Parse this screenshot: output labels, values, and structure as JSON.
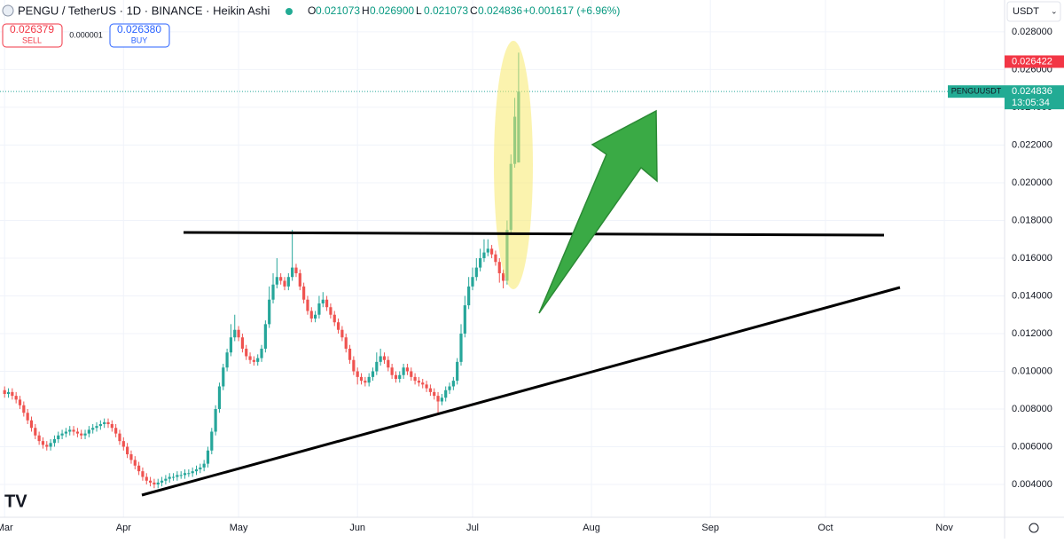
{
  "header": {
    "symbol": "PENGU / TetherUS · 1D · BINANCE · Heikin Ashi",
    "ohlc": [
      {
        "label": "O",
        "value": "0.021073"
      },
      {
        "label": "H",
        "value": "0.026900"
      },
      {
        "label": "L",
        "value": "0.021073"
      },
      {
        "label": "C",
        "value": "0.024836"
      }
    ],
    "change": "+0.001617 (+6.96%)"
  },
  "order_panel": {
    "sell_price": "0.026379",
    "sell_label": "SELL",
    "spread": "0.000001",
    "buy_price": "0.026380",
    "buy_label": "BUY"
  },
  "currency": "USDT",
  "chart_data": {
    "type": "candlestick",
    "up_color": "#26a69a",
    "down_color": "#ef5350",
    "x": [
      0,
      1,
      2,
      3,
      4,
      5,
      6,
      7,
      8,
      9,
      10,
      11,
      12,
      13,
      14,
      15,
      16,
      17,
      18,
      19,
      20,
      21,
      22,
      23,
      24,
      25,
      26,
      27,
      28,
      29,
      30,
      31,
      32,
      33,
      34,
      35,
      36,
      37,
      38,
      39,
      40,
      41,
      42,
      43,
      44,
      45,
      46,
      47,
      48,
      49,
      50,
      51,
      52,
      53,
      54,
      55,
      56,
      57,
      58,
      59,
      60,
      61,
      62,
      63,
      64,
      65,
      66,
      67,
      68,
      69,
      70,
      71,
      72,
      73,
      74,
      75,
      76,
      77,
      78,
      79,
      80,
      81,
      82,
      83,
      84,
      85,
      86,
      87,
      88,
      89,
      90,
      91,
      92,
      93,
      94,
      95,
      96,
      97,
      98,
      99,
      100,
      101,
      102,
      103,
      104,
      105,
      106,
      107,
      108,
      109,
      110,
      111,
      112,
      113,
      114,
      115,
      116,
      117,
      118,
      119,
      120,
      121,
      122,
      123,
      124,
      125,
      126,
      127,
      128,
      129,
      130,
      131,
      132,
      133,
      134
    ],
    "open": [
      0.009,
      0.0088,
      0.0089,
      0.0087,
      0.0085,
      0.0082,
      0.0078,
      0.0074,
      0.007,
      0.0066,
      0.0063,
      0.0061,
      0.006,
      0.0062,
      0.0064,
      0.0066,
      0.0067,
      0.0068,
      0.0069,
      0.0068,
      0.0067,
      0.0066,
      0.0067,
      0.0069,
      0.007,
      0.0071,
      0.0072,
      0.0073,
      0.0072,
      0.007,
      0.0067,
      0.0063,
      0.006,
      0.0056,
      0.0053,
      0.005,
      0.0047,
      0.0044,
      0.0042,
      0.0041,
      0.004,
      0.0041,
      0.0042,
      0.0043,
      0.0044,
      0.0044,
      0.0045,
      0.0045,
      0.0046,
      0.0046,
      0.0047,
      0.0048,
      0.0049,
      0.0051,
      0.0058,
      0.0068,
      0.008,
      0.0092,
      0.0102,
      0.011,
      0.0118,
      0.0122,
      0.0118,
      0.0112,
      0.0108,
      0.0106,
      0.0105,
      0.0107,
      0.0112,
      0.0125,
      0.0138,
      0.0146,
      0.015,
      0.0148,
      0.0145,
      0.015,
      0.0155,
      0.0152,
      0.0145,
      0.0138,
      0.0132,
      0.0128,
      0.013,
      0.0136,
      0.0138,
      0.0134,
      0.013,
      0.0126,
      0.0122,
      0.0118,
      0.0112,
      0.0106,
      0.01,
      0.0097,
      0.0095,
      0.0094,
      0.0097,
      0.01,
      0.0105,
      0.0108,
      0.0106,
      0.0102,
      0.0098,
      0.0096,
      0.0098,
      0.0102,
      0.01,
      0.0097,
      0.0095,
      0.0094,
      0.0093,
      0.0091,
      0.0089,
      0.0087,
      0.0084,
      0.0086,
      0.009,
      0.0092,
      0.0095,
      0.0105,
      0.012,
      0.0135,
      0.0145,
      0.015,
      0.0155,
      0.016,
      0.0163,
      0.0165,
      0.0162,
      0.0158,
      0.0152,
      0.0148,
      0.0175,
      0.021,
      0.021073
    ],
    "high": [
      0.0092,
      0.0091,
      0.0091,
      0.0089,
      0.0087,
      0.0084,
      0.008,
      0.0076,
      0.0072,
      0.0068,
      0.0065,
      0.0063,
      0.0064,
      0.0066,
      0.0068,
      0.0069,
      0.007,
      0.0071,
      0.0071,
      0.007,
      0.0069,
      0.0069,
      0.0071,
      0.0072,
      0.0073,
      0.0074,
      0.0075,
      0.0075,
      0.0074,
      0.0072,
      0.0069,
      0.0065,
      0.0062,
      0.0058,
      0.0055,
      0.0052,
      0.0049,
      0.0046,
      0.0044,
      0.0043,
      0.0043,
      0.0044,
      0.0045,
      0.0046,
      0.0046,
      0.0047,
      0.0047,
      0.0048,
      0.0048,
      0.0049,
      0.005,
      0.0051,
      0.0053,
      0.006,
      0.007,
      0.0082,
      0.0094,
      0.0104,
      0.0112,
      0.0125,
      0.013,
      0.0124,
      0.012,
      0.0114,
      0.011,
      0.0108,
      0.0109,
      0.0114,
      0.0127,
      0.0145,
      0.0152,
      0.016,
      0.0152,
      0.015,
      0.0152,
      0.0175,
      0.0157,
      0.0154,
      0.0147,
      0.014,
      0.0134,
      0.0132,
      0.014,
      0.0142,
      0.014,
      0.0136,
      0.0132,
      0.0128,
      0.0124,
      0.012,
      0.0114,
      0.0108,
      0.0102,
      0.0099,
      0.0097,
      0.0099,
      0.0102,
      0.011,
      0.0112,
      0.011,
      0.0108,
      0.0104,
      0.01,
      0.01,
      0.0104,
      0.0104,
      0.0102,
      0.0099,
      0.0097,
      0.0096,
      0.0095,
      0.0093,
      0.0091,
      0.0089,
      0.0088,
      0.0092,
      0.0094,
      0.0097,
      0.0107,
      0.0125,
      0.014,
      0.015,
      0.0155,
      0.016,
      0.0165,
      0.017,
      0.017,
      0.0167,
      0.0164,
      0.016,
      0.0154,
      0.018,
      0.0215,
      0.0245,
      0.0269
    ],
    "low": [
      0.0086,
      0.0086,
      0.0085,
      0.0083,
      0.008,
      0.0076,
      0.0072,
      0.0068,
      0.0064,
      0.0061,
      0.0059,
      0.0058,
      0.0058,
      0.006,
      0.0062,
      0.0064,
      0.0065,
      0.0066,
      0.0066,
      0.0065,
      0.0064,
      0.0064,
      0.0065,
      0.0067,
      0.0068,
      0.0069,
      0.007,
      0.007,
      0.0068,
      0.0065,
      0.0061,
      0.0058,
      0.0054,
      0.0051,
      0.0048,
      0.0045,
      0.0042,
      0.004,
      0.0039,
      0.0038,
      0.0038,
      0.0039,
      0.004,
      0.0041,
      0.0042,
      0.0042,
      0.0043,
      0.0043,
      0.0044,
      0.0044,
      0.0045,
      0.0046,
      0.0047,
      0.0049,
      0.0056,
      0.0066,
      0.0078,
      0.009,
      0.01,
      0.0108,
      0.0116,
      0.0116,
      0.011,
      0.0106,
      0.0104,
      0.0103,
      0.0103,
      0.0105,
      0.011,
      0.0123,
      0.0136,
      0.0144,
      0.0146,
      0.0143,
      0.0143,
      0.0148,
      0.015,
      0.0143,
      0.0136,
      0.013,
      0.0126,
      0.0126,
      0.0128,
      0.0134,
      0.0132,
      0.0128,
      0.0124,
      0.012,
      0.0116,
      0.011,
      0.0104,
      0.0098,
      0.0093,
      0.0093,
      0.0092,
      0.0092,
      0.0095,
      0.0098,
      0.0103,
      0.0104,
      0.01,
      0.0096,
      0.0094,
      0.0094,
      0.0096,
      0.0098,
      0.0095,
      0.0093,
      0.0092,
      0.0091,
      0.0089,
      0.0087,
      0.0085,
      0.0078,
      0.0082,
      0.0084,
      0.0088,
      0.009,
      0.0093,
      0.0103,
      0.0118,
      0.0133,
      0.0143,
      0.0148,
      0.0153,
      0.0158,
      0.0161,
      0.016,
      0.0156,
      0.0147,
      0.0144,
      0.0146,
      0.0173,
      0.0208,
      0.021073
    ],
    "close": [
      0.0088,
      0.0089,
      0.0087,
      0.0085,
      0.0082,
      0.0078,
      0.0074,
      0.007,
      0.0066,
      0.0063,
      0.0061,
      0.006,
      0.0062,
      0.0064,
      0.0066,
      0.0067,
      0.0068,
      0.0069,
      0.0068,
      0.0067,
      0.0066,
      0.0067,
      0.0069,
      0.007,
      0.0071,
      0.0072,
      0.0073,
      0.0072,
      0.007,
      0.0067,
      0.0063,
      0.006,
      0.0056,
      0.0053,
      0.005,
      0.0047,
      0.0044,
      0.0042,
      0.0041,
      0.004,
      0.0041,
      0.0042,
      0.0043,
      0.0044,
      0.0044,
      0.0045,
      0.0045,
      0.0046,
      0.0046,
      0.0047,
      0.0048,
      0.0049,
      0.0051,
      0.0058,
      0.0068,
      0.008,
      0.0092,
      0.0102,
      0.011,
      0.0118,
      0.0122,
      0.0118,
      0.0112,
      0.0108,
      0.0106,
      0.0105,
      0.0107,
      0.0112,
      0.0125,
      0.0138,
      0.0146,
      0.015,
      0.0148,
      0.0145,
      0.015,
      0.0155,
      0.0152,
      0.0145,
      0.0138,
      0.0132,
      0.0128,
      0.013,
      0.0136,
      0.0138,
      0.0134,
      0.013,
      0.0126,
      0.0122,
      0.0118,
      0.0112,
      0.0106,
      0.01,
      0.0097,
      0.0095,
      0.0094,
      0.0097,
      0.01,
      0.0105,
      0.0108,
      0.0106,
      0.0102,
      0.0098,
      0.0096,
      0.0098,
      0.0102,
      0.01,
      0.0097,
      0.0095,
      0.0094,
      0.0093,
      0.0091,
      0.0089,
      0.0087,
      0.0084,
      0.0086,
      0.009,
      0.0092,
      0.0095,
      0.0105,
      0.012,
      0.0135,
      0.0145,
      0.015,
      0.0155,
      0.016,
      0.0163,
      0.0165,
      0.0162,
      0.0158,
      0.0152,
      0.0148,
      0.0175,
      0.021,
      0.0235,
      0.024836
    ],
    "xlim": [
      -1.2,
      260.7
    ],
    "xticks": [
      {
        "value": 0,
        "label": "Mar"
      },
      {
        "value": 31,
        "label": "Apr"
      },
      {
        "value": 61,
        "label": "May"
      },
      {
        "value": 92,
        "label": "Jun"
      },
      {
        "value": 122,
        "label": "Jul"
      },
      {
        "value": 153,
        "label": "Aug"
      },
      {
        "value": 184,
        "label": "Sep"
      },
      {
        "value": 214,
        "label": "Oct"
      },
      {
        "value": 245,
        "label": "Nov"
      }
    ],
    "ylim": [
      0.00226,
      0.02969
    ],
    "yticks": [
      {
        "value": 0.004,
        "label": "0.004000"
      },
      {
        "value": 0.006,
        "label": "0.006000"
      },
      {
        "value": 0.008,
        "label": "0.008000"
      },
      {
        "value": 0.01,
        "label": "0.010000"
      },
      {
        "value": 0.012,
        "label": "0.012000"
      },
      {
        "value": 0.014,
        "label": "0.014000"
      },
      {
        "value": 0.016,
        "label": "0.016000"
      },
      {
        "value": 0.018,
        "label": "0.018000"
      },
      {
        "value": 0.02,
        "label": "0.020000"
      },
      {
        "value": 0.022,
        "label": "0.022000"
      },
      {
        "value": 0.024,
        "label": "0.024000"
      },
      {
        "value": 0.026,
        "label": "0.026000"
      },
      {
        "value": 0.028,
        "label": "0.028000"
      }
    ],
    "high_tag": 0.026422,
    "last_tag": {
      "symbol": "PENGUUSDT",
      "value": 0.024836,
      "countdown": "13:05:34"
    }
  }
}
